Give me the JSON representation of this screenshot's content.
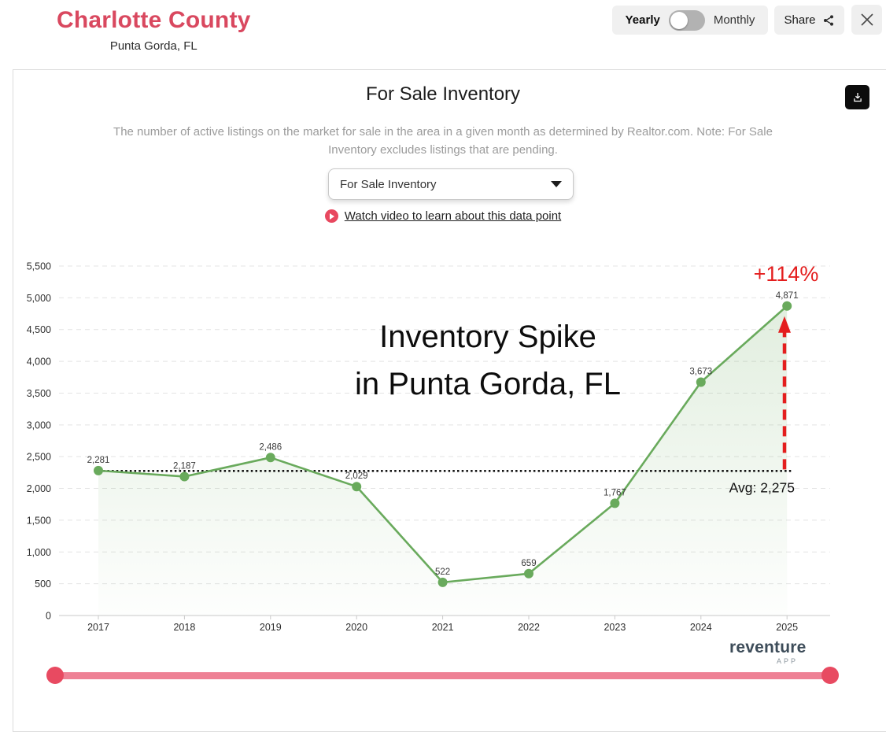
{
  "header": {
    "title": "Charlotte County",
    "subtitle": "Punta Gorda, FL",
    "toggle": {
      "left_label": "Yearly",
      "right_label": "Monthly",
      "selected": "Yearly"
    },
    "share_label": "Share"
  },
  "panel": {
    "title": "For Sale Inventory",
    "description": "The number of active listings on the market for sale in the area in a given month as determined by Realtor.com. Note: For Sale Inventory excludes listings that are pending.",
    "dropdown_value": "For Sale Inventory",
    "video_link": "Watch video to learn about this data point"
  },
  "chart_data": {
    "type": "line",
    "title": "For Sale Inventory",
    "categories": [
      "2017",
      "2018",
      "2019",
      "2020",
      "2021",
      "2022",
      "2023",
      "2024",
      "2025"
    ],
    "values": [
      2281,
      2187,
      2486,
      2029,
      522,
      659,
      1767,
      3673,
      4871
    ],
    "ylim": [
      0,
      5500
    ],
    "ytick_step": 500,
    "grid": true,
    "legend": "none",
    "average_line": 2275,
    "annotations": {
      "avg_label": "Avg: 2,275",
      "pct_change": "+114%",
      "overlay_line1": "Inventory Spike",
      "overlay_line2": "in Punta Gorda, FL"
    }
  },
  "footer": {
    "brand": "reventure",
    "brand_sub": "APP"
  },
  "colors": {
    "accent_rose": "#d9485f",
    "line_green": "#69aa5c",
    "annotation_red": "#e41e1e",
    "avg_line_black": "#111111",
    "grid_gray": "#e4e4e4",
    "axis_gray": "#c9c9c9",
    "slider_track": "#ee8195",
    "slider_handle": "#e84a61"
  }
}
